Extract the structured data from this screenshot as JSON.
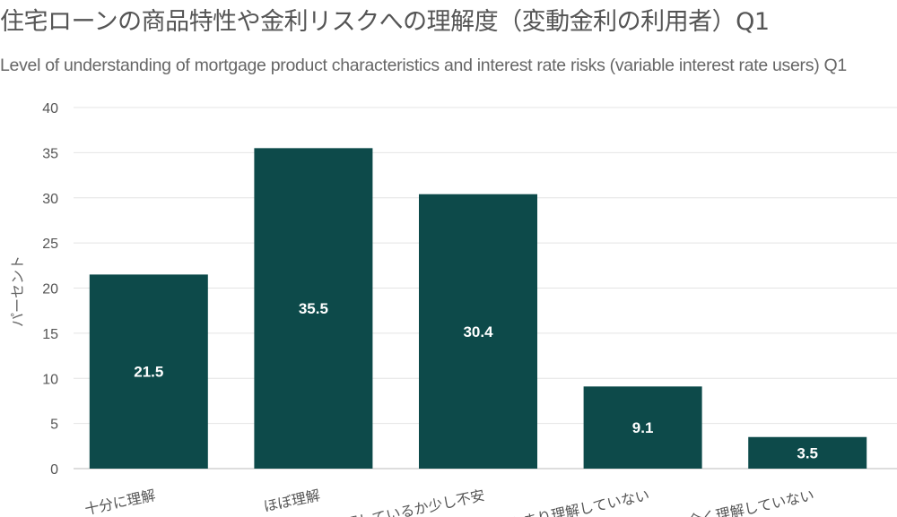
{
  "chart_data": {
    "type": "bar",
    "title": "住宅ローンの商品特性や金利リスクへの理解度（変動金利の利用者）Q1",
    "subtitle": "Level of understanding of mortgage product characteristics and interest rate risks (variable interest rate users) Q1",
    "ylabel": "パーセント",
    "xlabel": "",
    "ylim": [
      0,
      40
    ],
    "yticks": [
      0,
      5,
      10,
      15,
      20,
      25,
      30,
      35,
      40
    ],
    "categories": [
      "十分に理解",
      "ほぼ理解",
      "理解しているか少し不安",
      "あまり理解していない",
      "全く理解していない"
    ],
    "values": [
      21.5,
      35.5,
      30.4,
      9.1,
      3.5
    ],
    "grid": true,
    "legend": "none",
    "bar_color": "#0d4a4a"
  }
}
